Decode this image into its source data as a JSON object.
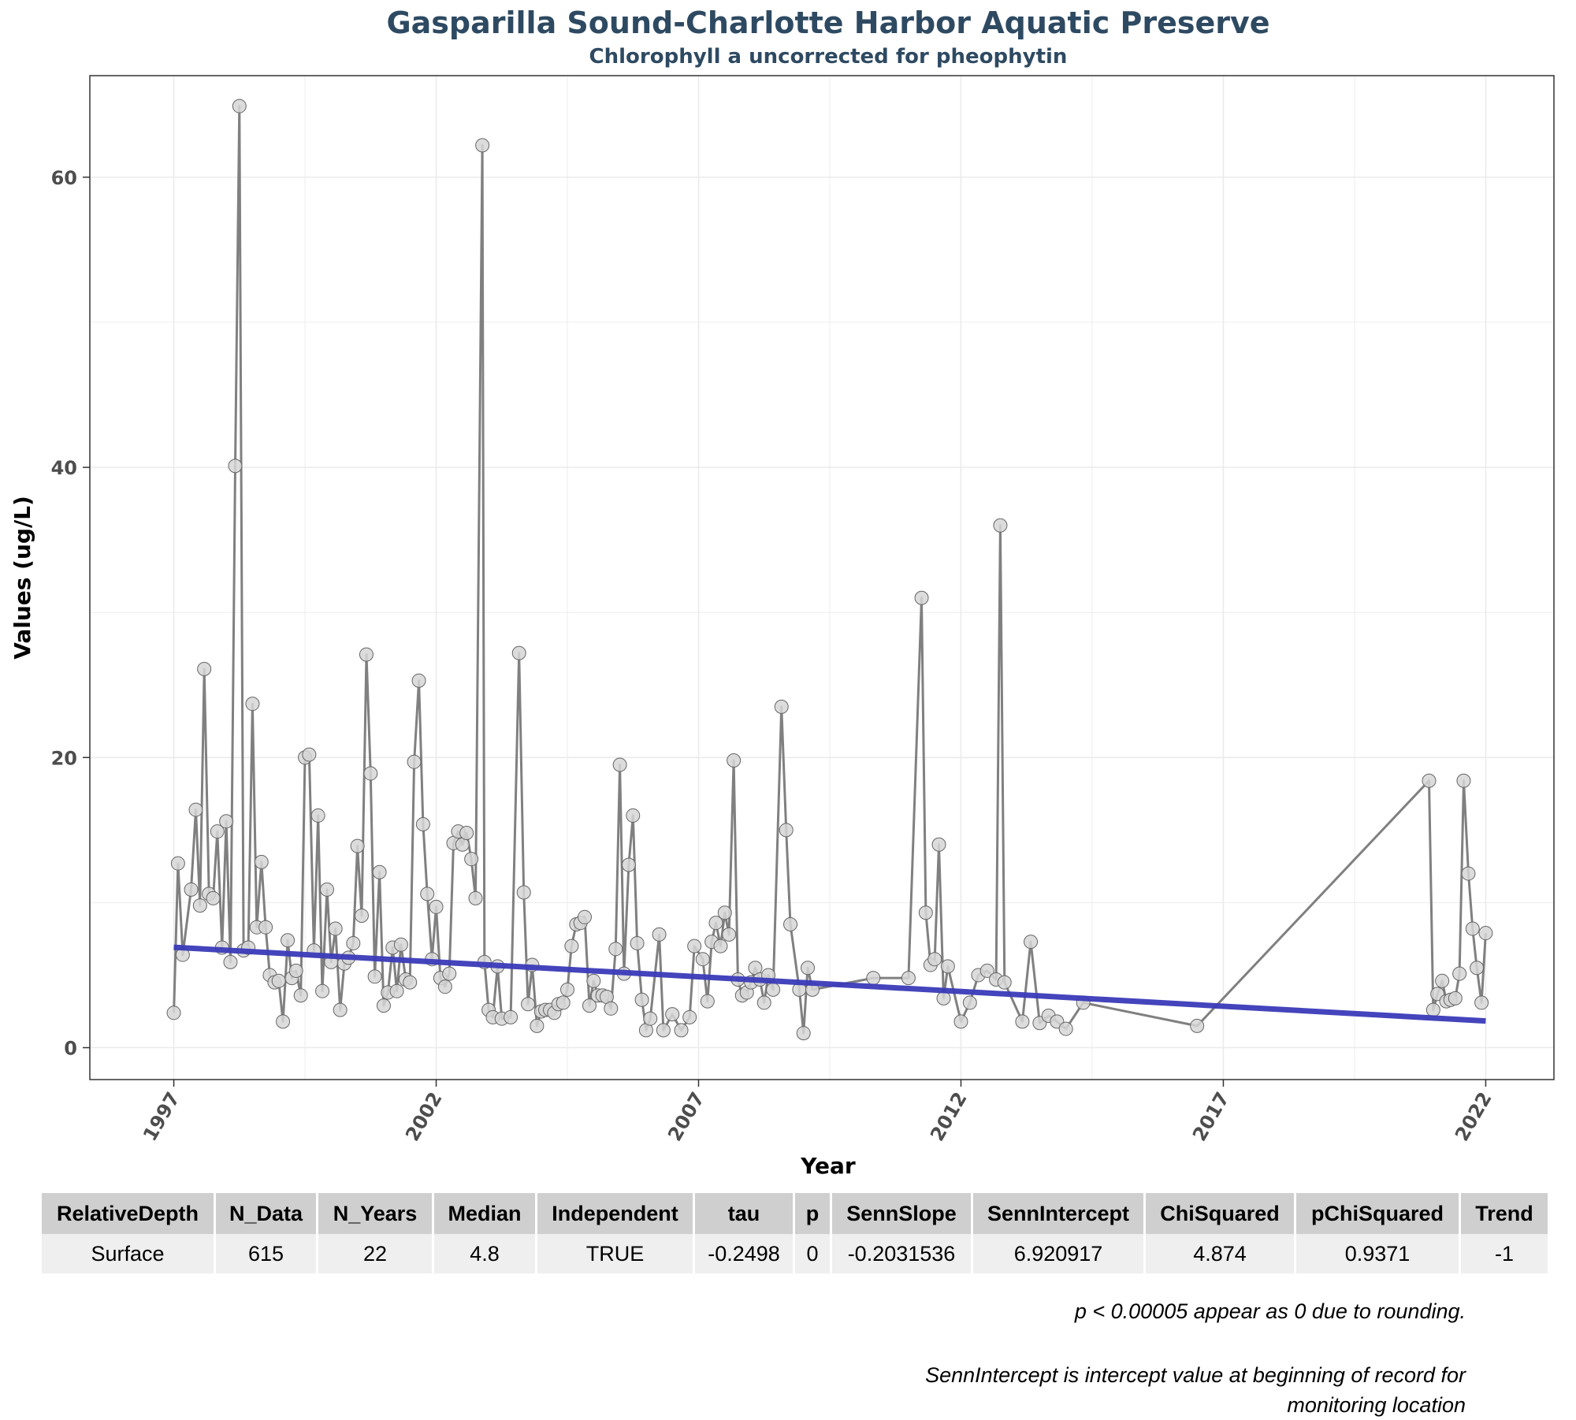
{
  "chart_data": {
    "type": "line",
    "title": "Gasparilla Sound-Charlotte Harbor Aquatic Preserve",
    "subtitle": "Chlorophyll a uncorrected for pheophytin",
    "xlabel": "Year",
    "ylabel": "Values (ug/L)",
    "xlim": [
      1995.4,
      2023.3
    ],
    "ylim": [
      -2.2,
      67
    ],
    "x_ticks": [
      1997,
      2002,
      2007,
      2012,
      2017,
      2022
    ],
    "y_ticks": [
      0,
      20,
      40,
      60
    ],
    "grid": true,
    "series": [
      {
        "name": "",
        "color": "#808080",
        "points": [
          [
            1997.0,
            2.4
          ],
          [
            1997.08,
            12.7
          ],
          [
            1997.17,
            6.4
          ],
          [
            1997.33,
            10.9
          ],
          [
            1997.42,
            16.4
          ],
          [
            1997.5,
            9.8
          ],
          [
            1997.58,
            26.1
          ],
          [
            1997.67,
            10.6
          ],
          [
            1997.75,
            10.3
          ],
          [
            1997.83,
            14.9
          ],
          [
            1997.92,
            6.9
          ],
          [
            1998.0,
            15.6
          ],
          [
            1998.08,
            5.9
          ],
          [
            1998.17,
            40.1
          ],
          [
            1998.25,
            64.9
          ],
          [
            1998.33,
            6.7
          ],
          [
            1998.42,
            6.9
          ],
          [
            1998.5,
            23.7
          ],
          [
            1998.58,
            8.3
          ],
          [
            1998.67,
            12.8
          ],
          [
            1998.75,
            8.3
          ],
          [
            1998.83,
            5.0
          ],
          [
            1998.92,
            4.5
          ],
          [
            1999.0,
            4.6
          ],
          [
            1999.08,
            1.8
          ],
          [
            1999.17,
            7.4
          ],
          [
            1999.25,
            4.8
          ],
          [
            1999.33,
            5.3
          ],
          [
            1999.42,
            3.6
          ],
          [
            1999.5,
            20.0
          ],
          [
            1999.58,
            20.2
          ],
          [
            1999.67,
            6.7
          ],
          [
            1999.75,
            16.0
          ],
          [
            1999.83,
            3.9
          ],
          [
            1999.92,
            10.9
          ],
          [
            2000.0,
            5.9
          ],
          [
            2000.08,
            8.2
          ],
          [
            2000.17,
            2.6
          ],
          [
            2000.25,
            5.8
          ],
          [
            2000.33,
            6.2
          ],
          [
            2000.42,
            7.2
          ],
          [
            2000.5,
            13.9
          ],
          [
            2000.58,
            9.1
          ],
          [
            2000.67,
            27.1
          ],
          [
            2000.75,
            18.9
          ],
          [
            2000.83,
            4.9
          ],
          [
            2000.92,
            12.1
          ],
          [
            2001.0,
            2.9
          ],
          [
            2001.08,
            3.8
          ],
          [
            2001.17,
            6.9
          ],
          [
            2001.25,
            3.9
          ],
          [
            2001.33,
            7.1
          ],
          [
            2001.42,
            4.7
          ],
          [
            2001.5,
            4.5
          ],
          [
            2001.58,
            19.7
          ],
          [
            2001.67,
            25.3
          ],
          [
            2001.75,
            15.4
          ],
          [
            2001.83,
            10.6
          ],
          [
            2001.92,
            6.1
          ],
          [
            2002.0,
            9.7
          ],
          [
            2002.08,
            4.8
          ],
          [
            2002.17,
            4.2
          ],
          [
            2002.25,
            5.1
          ],
          [
            2002.33,
            14.1
          ],
          [
            2002.42,
            14.9
          ],
          [
            2002.5,
            14.0
          ],
          [
            2002.58,
            14.8
          ],
          [
            2002.67,
            13.0
          ],
          [
            2002.75,
            10.3
          ],
          [
            2002.88,
            62.2
          ],
          [
            2002.92,
            5.9
          ],
          [
            2003.0,
            2.6
          ],
          [
            2003.08,
            2.1
          ],
          [
            2003.17,
            5.6
          ],
          [
            2003.25,
            2.0
          ],
          [
            2003.42,
            2.1
          ],
          [
            2003.58,
            27.2
          ],
          [
            2003.67,
            10.7
          ],
          [
            2003.75,
            3.0
          ],
          [
            2003.83,
            5.7
          ],
          [
            2003.92,
            1.5
          ],
          [
            2004.0,
            2.5
          ],
          [
            2004.08,
            2.6
          ],
          [
            2004.17,
            2.6
          ],
          [
            2004.25,
            2.4
          ],
          [
            2004.33,
            3.0
          ],
          [
            2004.42,
            3.1
          ],
          [
            2004.5,
            4.0
          ],
          [
            2004.58,
            7.0
          ],
          [
            2004.67,
            8.5
          ],
          [
            2004.75,
            8.6
          ],
          [
            2004.83,
            9.0
          ],
          [
            2004.92,
            2.9
          ],
          [
            2005.0,
            4.6
          ],
          [
            2005.08,
            3.6
          ],
          [
            2005.17,
            3.6
          ],
          [
            2005.25,
            3.5
          ],
          [
            2005.33,
            2.7
          ],
          [
            2005.42,
            6.8
          ],
          [
            2005.5,
            19.5
          ],
          [
            2005.58,
            5.1
          ],
          [
            2005.67,
            12.6
          ],
          [
            2005.75,
            16.0
          ],
          [
            2005.83,
            7.2
          ],
          [
            2005.92,
            3.3
          ],
          [
            2006.0,
            1.2
          ],
          [
            2006.08,
            2.0
          ],
          [
            2006.25,
            7.8
          ],
          [
            2006.33,
            1.2
          ],
          [
            2006.5,
            2.3
          ],
          [
            2006.67,
            1.2
          ],
          [
            2006.83,
            2.1
          ],
          [
            2006.92,
            7.0
          ],
          [
            2007.08,
            6.1
          ],
          [
            2007.17,
            3.2
          ],
          [
            2007.25,
            7.3
          ],
          [
            2007.33,
            8.6
          ],
          [
            2007.42,
            7.0
          ],
          [
            2007.5,
            9.3
          ],
          [
            2007.58,
            7.8
          ],
          [
            2007.67,
            19.8
          ],
          [
            2007.75,
            4.7
          ],
          [
            2007.83,
            3.6
          ],
          [
            2007.92,
            3.8
          ],
          [
            2008.0,
            4.5
          ],
          [
            2008.08,
            5.5
          ],
          [
            2008.17,
            4.7
          ],
          [
            2008.25,
            3.1
          ],
          [
            2008.33,
            5.0
          ],
          [
            2008.42,
            4.0
          ],
          [
            2008.58,
            23.5
          ],
          [
            2008.67,
            15.0
          ],
          [
            2008.75,
            8.5
          ],
          [
            2008.92,
            4.0
          ],
          [
            2009.0,
            1.0
          ],
          [
            2009.08,
            5.5
          ],
          [
            2009.17,
            4.0
          ],
          [
            2010.33,
            4.8
          ],
          [
            2011.0,
            4.8
          ],
          [
            2011.25,
            31.0
          ],
          [
            2011.33,
            9.3
          ],
          [
            2011.42,
            5.7
          ],
          [
            2011.5,
            6.1
          ],
          [
            2011.58,
            14.0
          ],
          [
            2011.67,
            3.4
          ],
          [
            2011.75,
            5.6
          ],
          [
            2012.0,
            1.8
          ],
          [
            2012.17,
            3.1
          ],
          [
            2012.33,
            5.0
          ],
          [
            2012.5,
            5.3
          ],
          [
            2012.67,
            4.7
          ],
          [
            2012.75,
            36.0
          ],
          [
            2012.83,
            4.5
          ],
          [
            2013.17,
            1.8
          ],
          [
            2013.33,
            7.3
          ],
          [
            2013.5,
            1.7
          ],
          [
            2013.67,
            2.2
          ],
          [
            2013.83,
            1.8
          ],
          [
            2014.0,
            1.3
          ],
          [
            2014.33,
            3.1
          ],
          [
            2016.5,
            1.5
          ],
          [
            2020.92,
            18.4
          ],
          [
            2021.0,
            2.6
          ],
          [
            2021.08,
            3.7
          ],
          [
            2021.17,
            4.6
          ],
          [
            2021.25,
            3.2
          ],
          [
            2021.33,
            3.3
          ],
          [
            2021.42,
            3.4
          ],
          [
            2021.5,
            5.1
          ],
          [
            2021.58,
            18.4
          ],
          [
            2021.67,
            12.0
          ],
          [
            2021.75,
            8.2
          ],
          [
            2021.83,
            5.5
          ],
          [
            2021.92,
            3.1
          ],
          [
            2022.0,
            7.9
          ]
        ]
      },
      {
        "name": "",
        "type": "trendline",
        "color": "#3a3ab8",
        "points": [
          [
            1997.0,
            6.92
          ],
          [
            2022.0,
            1.84
          ]
        ]
      }
    ]
  },
  "table": {
    "headers": [
      "RelativeDepth",
      "N_Data",
      "N_Years",
      "Median",
      "Independent",
      "tau",
      "p",
      "SennSlope",
      "SennIntercept",
      "ChiSquared",
      "pChiSquared",
      "Trend"
    ],
    "rows": [
      [
        "Surface",
        "615",
        "22",
        "4.8",
        "TRUE",
        "-0.2498",
        "0",
        "-0.2031536",
        "6.920917",
        "4.874",
        "0.9371",
        "-1"
      ]
    ]
  },
  "notes": {
    "note1": "p < 0.00005 appear as 0 due to rounding.",
    "note2": "SennIntercept is intercept value at beginning of record for monitoring location"
  }
}
